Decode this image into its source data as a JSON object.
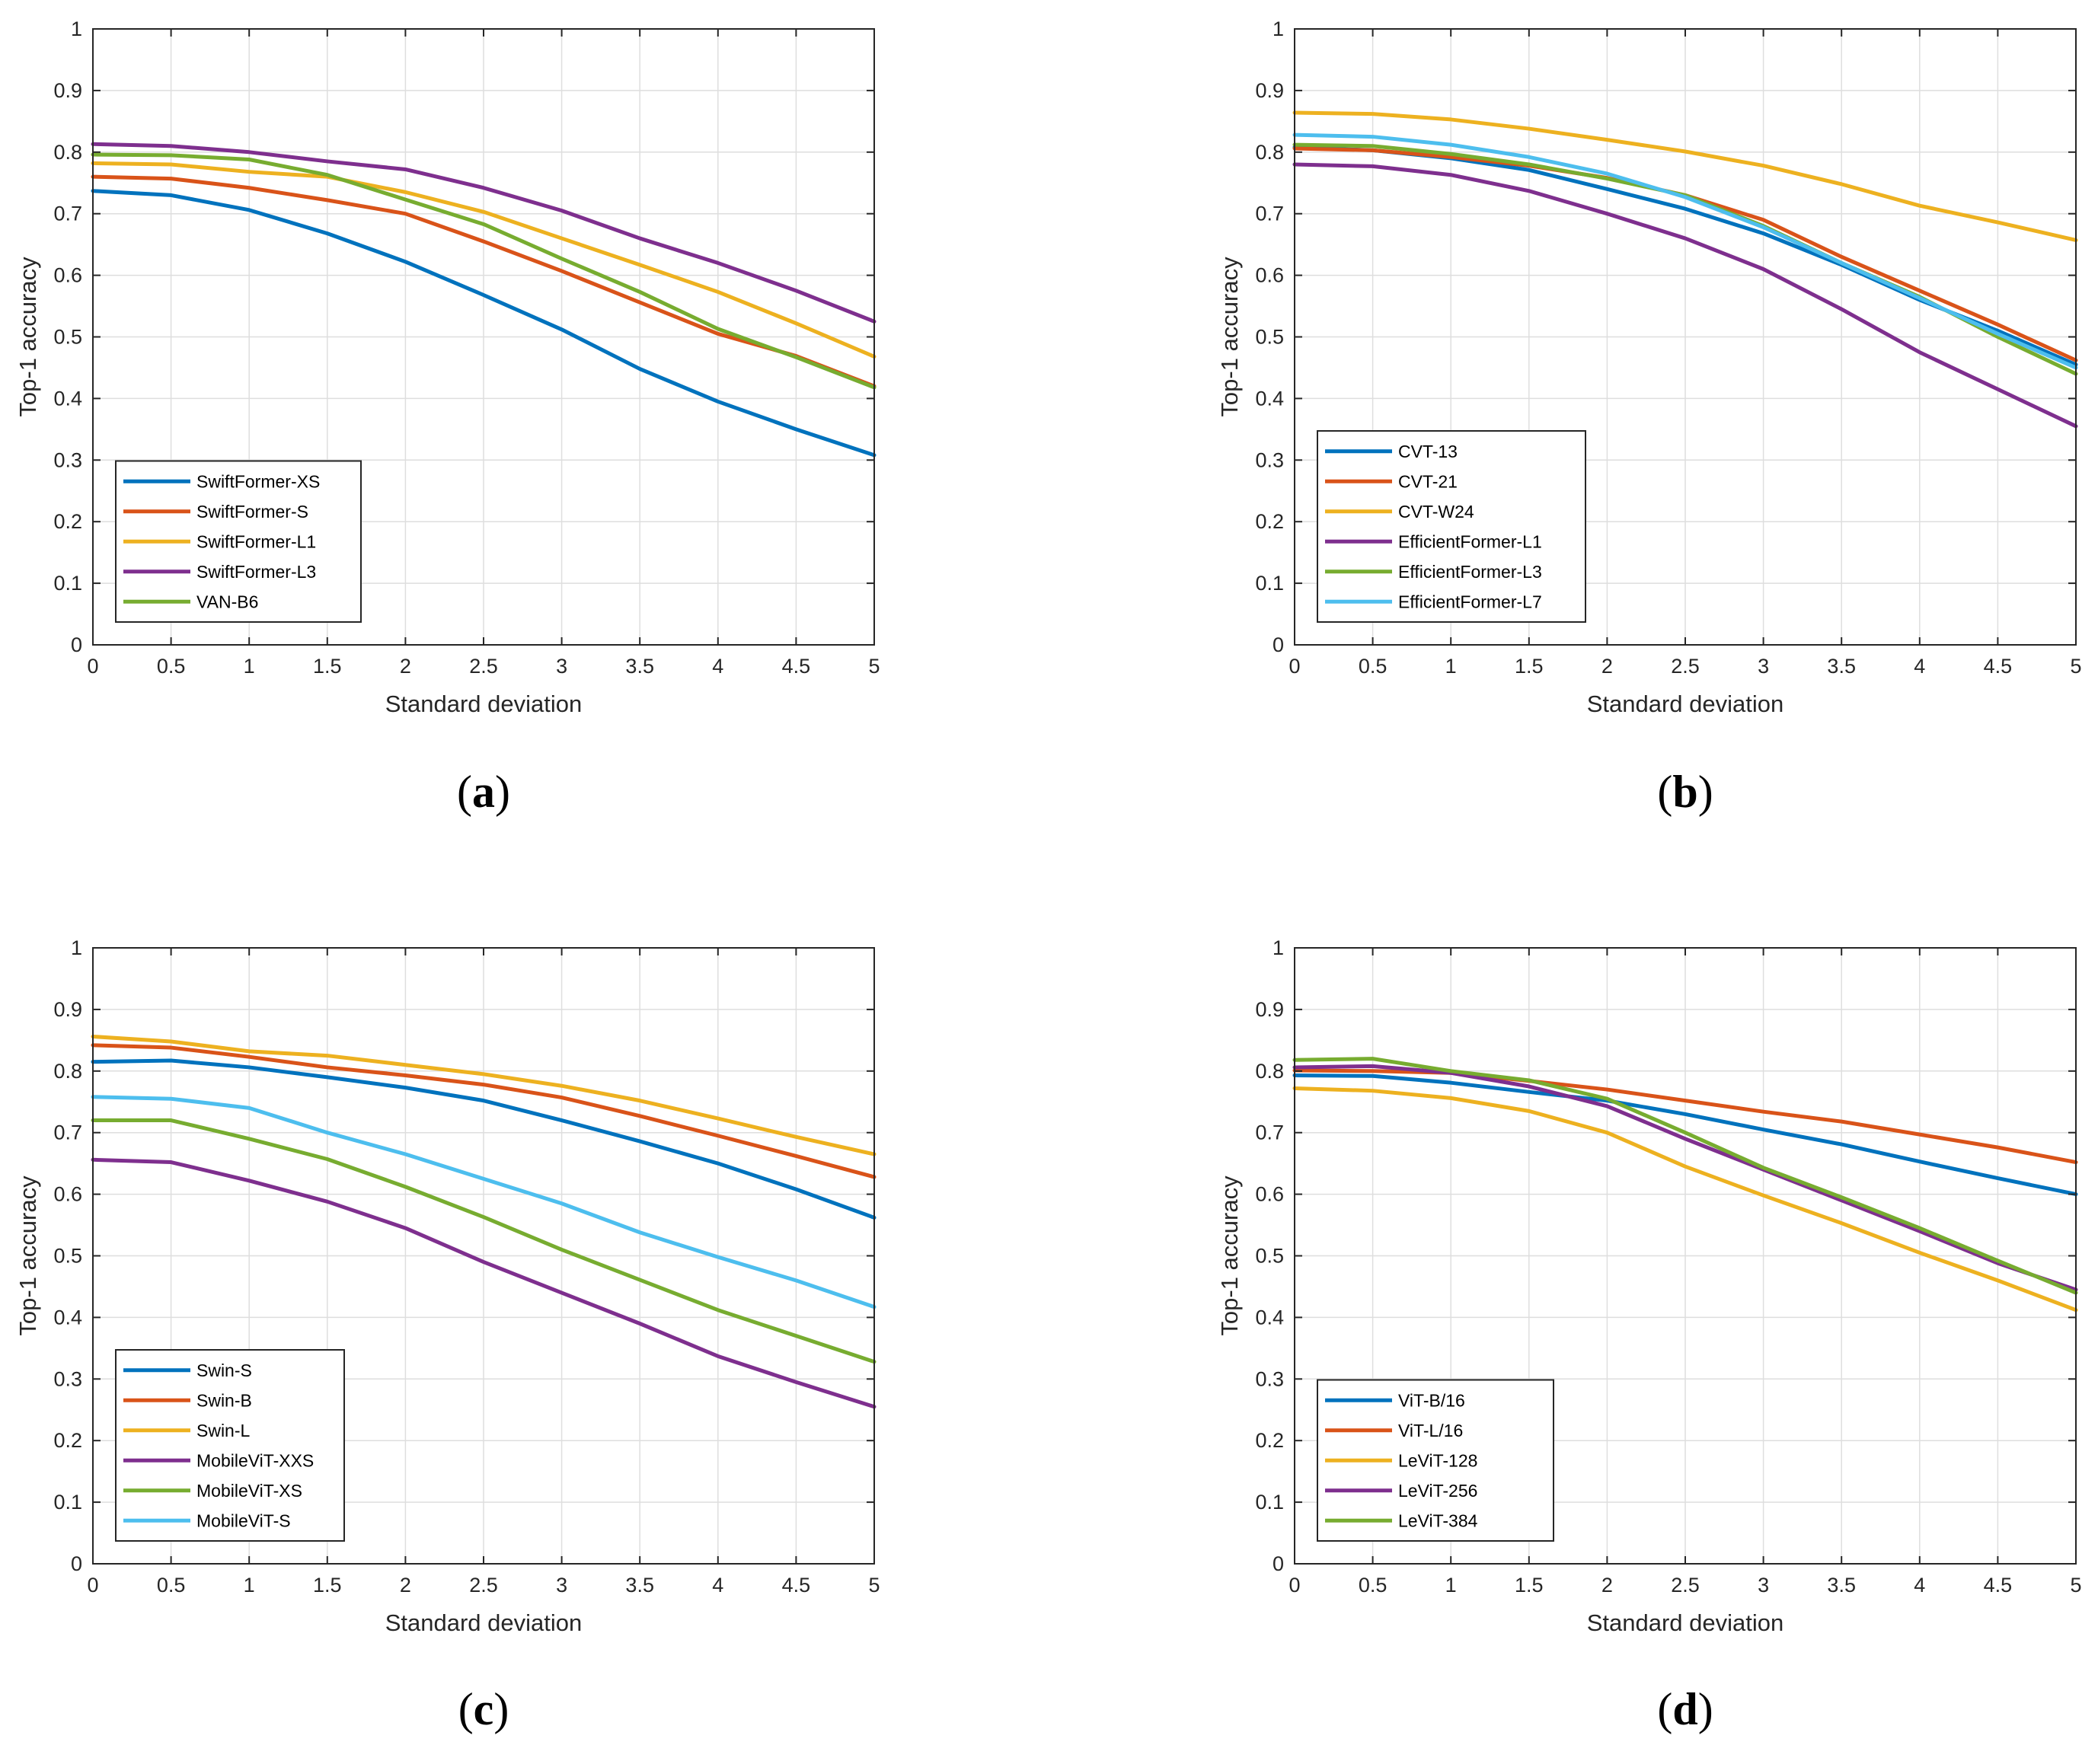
{
  "chart_data": [
    {
      "type": "line",
      "caption": {
        "open": "(",
        "letter": "a",
        "close": ")"
      },
      "xlabel": "Standard deviation",
      "ylabel": "Top-1 accuracy",
      "xlim": [
        0,
        5
      ],
      "ylim": [
        0,
        1
      ],
      "xticks": [
        "0",
        "0.5",
        "1",
        "1.5",
        "2",
        "2.5",
        "3",
        "3.5",
        "4",
        "4.5",
        "5"
      ],
      "yticks": [
        "0",
        "0.1",
        "0.2",
        "0.3",
        "0.4",
        "0.5",
        "0.6",
        "0.7",
        "0.8",
        "0.9",
        "1"
      ],
      "grid": true,
      "legend_location": "bottom-left",
      "x": [
        0,
        0.5,
        1,
        1.5,
        2,
        2.5,
        3,
        3.5,
        4,
        4.5,
        5
      ],
      "series": [
        {
          "name": "SwiftFormer-XS",
          "color": "#0072BD",
          "values": [
            0.737,
            0.73,
            0.706,
            0.668,
            0.622,
            0.568,
            0.512,
            0.448,
            0.395,
            0.35,
            0.308
          ]
        },
        {
          "name": "SwiftFormer-S",
          "color": "#D95319",
          "values": [
            0.76,
            0.757,
            0.742,
            0.722,
            0.7,
            0.655,
            0.607,
            0.556,
            0.505,
            0.469,
            0.42
          ]
        },
        {
          "name": "SwiftFormer-L1",
          "color": "#EDB120",
          "values": [
            0.782,
            0.78,
            0.768,
            0.76,
            0.735,
            0.703,
            0.66,
            0.617,
            0.573,
            0.522,
            0.468
          ]
        },
        {
          "name": "SwiftFormer-L3",
          "color": "#7E2F8E",
          "values": [
            0.813,
            0.81,
            0.8,
            0.785,
            0.772,
            0.742,
            0.705,
            0.66,
            0.62,
            0.575,
            0.525
          ]
        },
        {
          "name": "VAN-B6",
          "color": "#77AC30",
          "values": [
            0.796,
            0.795,
            0.788,
            0.763,
            0.723,
            0.683,
            0.627,
            0.573,
            0.513,
            0.467,
            0.418
          ]
        }
      ]
    },
    {
      "type": "line",
      "caption": {
        "open": "(",
        "letter": "b",
        "close": ")"
      },
      "xlabel": "Standard deviation",
      "ylabel": "Top-1 accuracy",
      "xlim": [
        0,
        5
      ],
      "ylim": [
        0,
        1
      ],
      "xticks": [
        "0",
        "0.5",
        "1",
        "1.5",
        "2",
        "2.5",
        "3",
        "3.5",
        "4",
        "4.5",
        "5"
      ],
      "yticks": [
        "0",
        "0.1",
        "0.2",
        "0.3",
        "0.4",
        "0.5",
        "0.6",
        "0.7",
        "0.8",
        "0.9",
        "1"
      ],
      "grid": true,
      "legend_location": "bottom-left",
      "x": [
        0,
        0.5,
        1,
        1.5,
        2,
        2.5,
        3,
        3.5,
        4,
        4.5,
        5
      ],
      "series": [
        {
          "name": "CVT-13",
          "color": "#0072BD",
          "values": [
            0.808,
            0.803,
            0.79,
            0.771,
            0.74,
            0.708,
            0.668,
            0.617,
            0.56,
            0.51,
            0.455
          ]
        },
        {
          "name": "CVT-21",
          "color": "#D95319",
          "values": [
            0.806,
            0.803,
            0.792,
            0.778,
            0.758,
            0.73,
            0.69,
            0.63,
            0.575,
            0.52,
            0.462
          ]
        },
        {
          "name": "CVT-W24",
          "color": "#EDB120",
          "values": [
            0.864,
            0.862,
            0.853,
            0.838,
            0.82,
            0.801,
            0.778,
            0.748,
            0.713,
            0.686,
            0.657
          ]
        },
        {
          "name": "EfficientFormer-L1",
          "color": "#7E2F8E",
          "values": [
            0.78,
            0.777,
            0.763,
            0.737,
            0.7,
            0.66,
            0.61,
            0.545,
            0.475,
            0.415,
            0.355
          ]
        },
        {
          "name": "EfficientFormer-L3",
          "color": "#77AC30",
          "values": [
            0.812,
            0.81,
            0.797,
            0.78,
            0.757,
            0.73,
            0.68,
            0.62,
            0.565,
            0.5,
            0.44
          ]
        },
        {
          "name": "EfficientFormer-L7",
          "color": "#4DBEEE",
          "values": [
            0.828,
            0.825,
            0.812,
            0.792,
            0.765,
            0.727,
            0.678,
            0.62,
            0.563,
            0.505,
            0.45
          ]
        }
      ]
    },
    {
      "type": "line",
      "caption": {
        "open": "(",
        "letter": "c",
        "close": ")"
      },
      "xlabel": "Standard deviation",
      "ylabel": "Top-1 accuracy",
      "xlim": [
        0,
        5
      ],
      "ylim": [
        0,
        1
      ],
      "xticks": [
        "0",
        "0.5",
        "1",
        "1.5",
        "2",
        "2.5",
        "3",
        "3.5",
        "4",
        "4.5",
        "5"
      ],
      "yticks": [
        "0",
        "0.1",
        "0.2",
        "0.3",
        "0.4",
        "0.5",
        "0.6",
        "0.7",
        "0.8",
        "0.9",
        "1"
      ],
      "grid": true,
      "legend_location": "bottom-left",
      "x": [
        0,
        0.5,
        1,
        1.5,
        2,
        2.5,
        3,
        3.5,
        4,
        4.5,
        5
      ],
      "series": [
        {
          "name": "Swin-S",
          "color": "#0072BD",
          "values": [
            0.815,
            0.817,
            0.806,
            0.79,
            0.773,
            0.752,
            0.72,
            0.686,
            0.65,
            0.608,
            0.562
          ]
        },
        {
          "name": "Swin-B",
          "color": "#D95319",
          "values": [
            0.842,
            0.838,
            0.823,
            0.806,
            0.793,
            0.778,
            0.757,
            0.727,
            0.695,
            0.662,
            0.628
          ]
        },
        {
          "name": "Swin-L",
          "color": "#EDB120",
          "values": [
            0.856,
            0.848,
            0.832,
            0.825,
            0.81,
            0.795,
            0.776,
            0.752,
            0.723,
            0.693,
            0.665
          ]
        },
        {
          "name": "MobileViT-XXS",
          "color": "#7E2F8E",
          "values": [
            0.656,
            0.652,
            0.622,
            0.588,
            0.545,
            0.49,
            0.44,
            0.39,
            0.337,
            0.295,
            0.255
          ]
        },
        {
          "name": "MobileViT-XS",
          "color": "#77AC30",
          "values": [
            0.72,
            0.72,
            0.69,
            0.657,
            0.612,
            0.563,
            0.51,
            0.461,
            0.412,
            0.37,
            0.328
          ]
        },
        {
          "name": "MobileViT-S",
          "color": "#4DBEEE",
          "values": [
            0.758,
            0.755,
            0.74,
            0.7,
            0.665,
            0.625,
            0.585,
            0.538,
            0.498,
            0.46,
            0.417
          ]
        }
      ]
    },
    {
      "type": "line",
      "caption": {
        "open": "(",
        "letter": "d",
        "close": ")"
      },
      "xlabel": "Standard deviation",
      "ylabel": "Top-1 accuracy",
      "xlim": [
        0,
        5
      ],
      "ylim": [
        0,
        1
      ],
      "xticks": [
        "0",
        "0.5",
        "1",
        "1.5",
        "2",
        "2.5",
        "3",
        "3.5",
        "4",
        "4.5",
        "5"
      ],
      "yticks": [
        "0",
        "0.1",
        "0.2",
        "0.3",
        "0.4",
        "0.5",
        "0.6",
        "0.7",
        "0.8",
        "0.9",
        "1"
      ],
      "grid": true,
      "legend_location": "bottom-left",
      "x": [
        0,
        0.5,
        1,
        1.5,
        2,
        2.5,
        3,
        3.5,
        4,
        4.5,
        5
      ],
      "series": [
        {
          "name": "ViT-B/16",
          "color": "#0072BD",
          "values": [
            0.793,
            0.792,
            0.781,
            0.766,
            0.752,
            0.73,
            0.705,
            0.681,
            0.653,
            0.626,
            0.6
          ]
        },
        {
          "name": "ViT-L/16",
          "color": "#D95319",
          "values": [
            0.801,
            0.8,
            0.797,
            0.784,
            0.77,
            0.752,
            0.734,
            0.718,
            0.697,
            0.676,
            0.652
          ]
        },
        {
          "name": "LeViT-128",
          "color": "#EDB120",
          "values": [
            0.772,
            0.768,
            0.756,
            0.735,
            0.7,
            0.645,
            0.598,
            0.553,
            0.505,
            0.46,
            0.412
          ]
        },
        {
          "name": "LeViT-256",
          "color": "#7E2F8E",
          "values": [
            0.806,
            0.808,
            0.797,
            0.775,
            0.743,
            0.69,
            0.64,
            0.59,
            0.54,
            0.488,
            0.445
          ]
        },
        {
          "name": "LeViT-384",
          "color": "#77AC30",
          "values": [
            0.818,
            0.82,
            0.8,
            0.785,
            0.755,
            0.7,
            0.643,
            0.595,
            0.545,
            0.492,
            0.44
          ]
        }
      ]
    }
  ]
}
